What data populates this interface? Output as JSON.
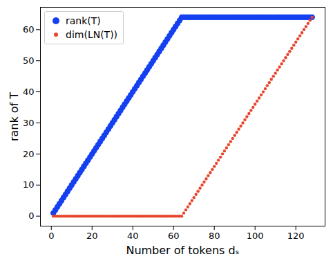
{
  "chart_data": {
    "type": "scatter",
    "x_label": "Number of tokens dₛ",
    "y_label": "rank of T",
    "x": [
      1,
      2,
      3,
      4,
      5,
      6,
      7,
      8,
      9,
      10,
      11,
      12,
      13,
      14,
      15,
      16,
      17,
      18,
      19,
      20,
      21,
      22,
      23,
      24,
      25,
      26,
      27,
      28,
      29,
      30,
      31,
      32,
      33,
      34,
      35,
      36,
      37,
      38,
      39,
      40,
      41,
      42,
      43,
      44,
      45,
      46,
      47,
      48,
      49,
      50,
      51,
      52,
      53,
      54,
      55,
      56,
      57,
      58,
      59,
      60,
      61,
      62,
      63,
      64,
      65,
      66,
      67,
      68,
      69,
      70,
      71,
      72,
      73,
      74,
      75,
      76,
      77,
      78,
      79,
      80,
      81,
      82,
      83,
      84,
      85,
      86,
      87,
      88,
      89,
      90,
      91,
      92,
      93,
      94,
      95,
      96,
      97,
      98,
      99,
      100,
      101,
      102,
      103,
      104,
      105,
      106,
      107,
      108,
      109,
      110,
      111,
      112,
      113,
      114,
      115,
      116,
      117,
      118,
      119,
      120,
      121,
      122,
      123,
      124,
      125,
      126,
      127,
      128
    ],
    "series": [
      {
        "name": "rank(T)",
        "color": "#1440f0",
        "marker": "o",
        "values": [
          1,
          2,
          3,
          4,
          5,
          6,
          7,
          8,
          9,
          10,
          11,
          12,
          13,
          14,
          15,
          16,
          17,
          18,
          19,
          20,
          21,
          22,
          23,
          24,
          25,
          26,
          27,
          28,
          29,
          30,
          31,
          32,
          33,
          34,
          35,
          36,
          37,
          38,
          39,
          40,
          41,
          42,
          43,
          44,
          45,
          46,
          47,
          48,
          49,
          50,
          51,
          52,
          53,
          54,
          55,
          56,
          57,
          58,
          59,
          60,
          61,
          62,
          63,
          64,
          64,
          64,
          64,
          64,
          64,
          64,
          64,
          64,
          64,
          64,
          64,
          64,
          64,
          64,
          64,
          64,
          64,
          64,
          64,
          64,
          64,
          64,
          64,
          64,
          64,
          64,
          64,
          64,
          64,
          64,
          64,
          64,
          64,
          64,
          64,
          64,
          64,
          64,
          64,
          64,
          64,
          64,
          64,
          64,
          64,
          64,
          64,
          64,
          64,
          64,
          64,
          64,
          64,
          64,
          64,
          64,
          64,
          64,
          64,
          64,
          64,
          64,
          64,
          64
        ]
      },
      {
        "name": "dim(LN(T))",
        "color": "#e8452c",
        "marker": "o",
        "values": [
          0,
          0,
          0,
          0,
          0,
          0,
          0,
          0,
          0,
          0,
          0,
          0,
          0,
          0,
          0,
          0,
          0,
          0,
          0,
          0,
          0,
          0,
          0,
          0,
          0,
          0,
          0,
          0,
          0,
          0,
          0,
          0,
          0,
          0,
          0,
          0,
          0,
          0,
          0,
          0,
          0,
          0,
          0,
          0,
          0,
          0,
          0,
          0,
          0,
          0,
          0,
          0,
          0,
          0,
          0,
          0,
          0,
          0,
          0,
          0,
          0,
          0,
          0,
          0,
          1,
          2,
          3,
          4,
          5,
          6,
          7,
          8,
          9,
          10,
          11,
          12,
          13,
          14,
          15,
          16,
          17,
          18,
          19,
          20,
          21,
          22,
          23,
          24,
          25,
          26,
          27,
          28,
          29,
          30,
          31,
          32,
          33,
          34,
          35,
          36,
          37,
          38,
          39,
          40,
          41,
          42,
          43,
          44,
          45,
          46,
          47,
          48,
          49,
          50,
          51,
          52,
          53,
          54,
          55,
          56,
          57,
          58,
          59,
          60,
          61,
          62,
          63,
          64
        ]
      }
    ],
    "xlim": [
      -5.35,
      134.35
    ],
    "ylim": [
      -3.2,
      67.2
    ],
    "xticks": [
      0,
      20,
      40,
      60,
      80,
      100,
      120
    ],
    "yticks": [
      0,
      10,
      20,
      30,
      40,
      50,
      60
    ],
    "legend": "upper left",
    "grid": false
  }
}
